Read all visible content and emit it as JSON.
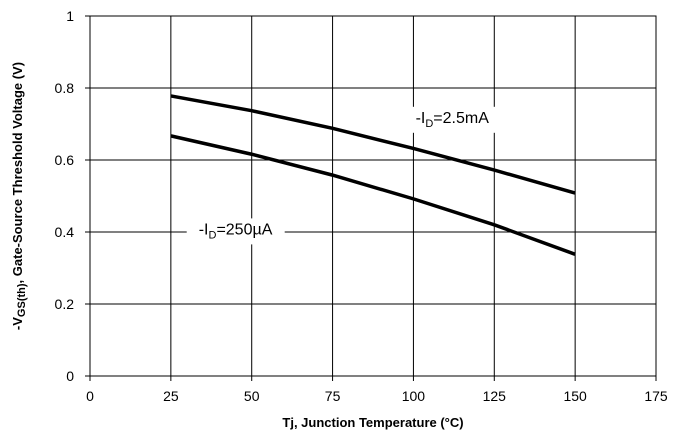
{
  "chart_data": {
    "type": "line",
    "xlabel": "Tj, Junction Temperature (°C)",
    "ylabel": {
      "prefix": "-V",
      "subscript": "GS(th)",
      "suffix": ", Gate-Source Threshold Voltage (V)"
    },
    "xlim": [
      0,
      175
    ],
    "ylim": [
      0,
      1
    ],
    "x_ticks": [
      0,
      25,
      50,
      75,
      100,
      125,
      150,
      175
    ],
    "x_tick_labels": [
      "0",
      "25",
      "50",
      "75",
      "100",
      "125",
      "150",
      "175"
    ],
    "y_ticks": [
      0,
      0.2,
      0.4,
      0.6,
      0.8,
      1
    ],
    "y_tick_labels": [
      "0",
      "0.2",
      "0.4",
      "0.6",
      "0.8",
      "1"
    ],
    "grid": true,
    "legend": "none",
    "series": [
      {
        "label": {
          "prefix": "-I",
          "subscript": "D",
          "suffix": "=2.5mA"
        },
        "x": [
          25,
          50,
          75,
          100,
          125,
          150
        ],
        "y": [
          0.778,
          0.737,
          0.688,
          0.632,
          0.572,
          0.508
        ]
      },
      {
        "label": {
          "prefix": "-I",
          "subscript": "D",
          "suffix": "=250µA"
        },
        "x": [
          25,
          50,
          75,
          100,
          125,
          150
        ],
        "y": [
          0.667,
          0.616,
          0.558,
          0.492,
          0.42,
          0.338
        ]
      }
    ]
  }
}
